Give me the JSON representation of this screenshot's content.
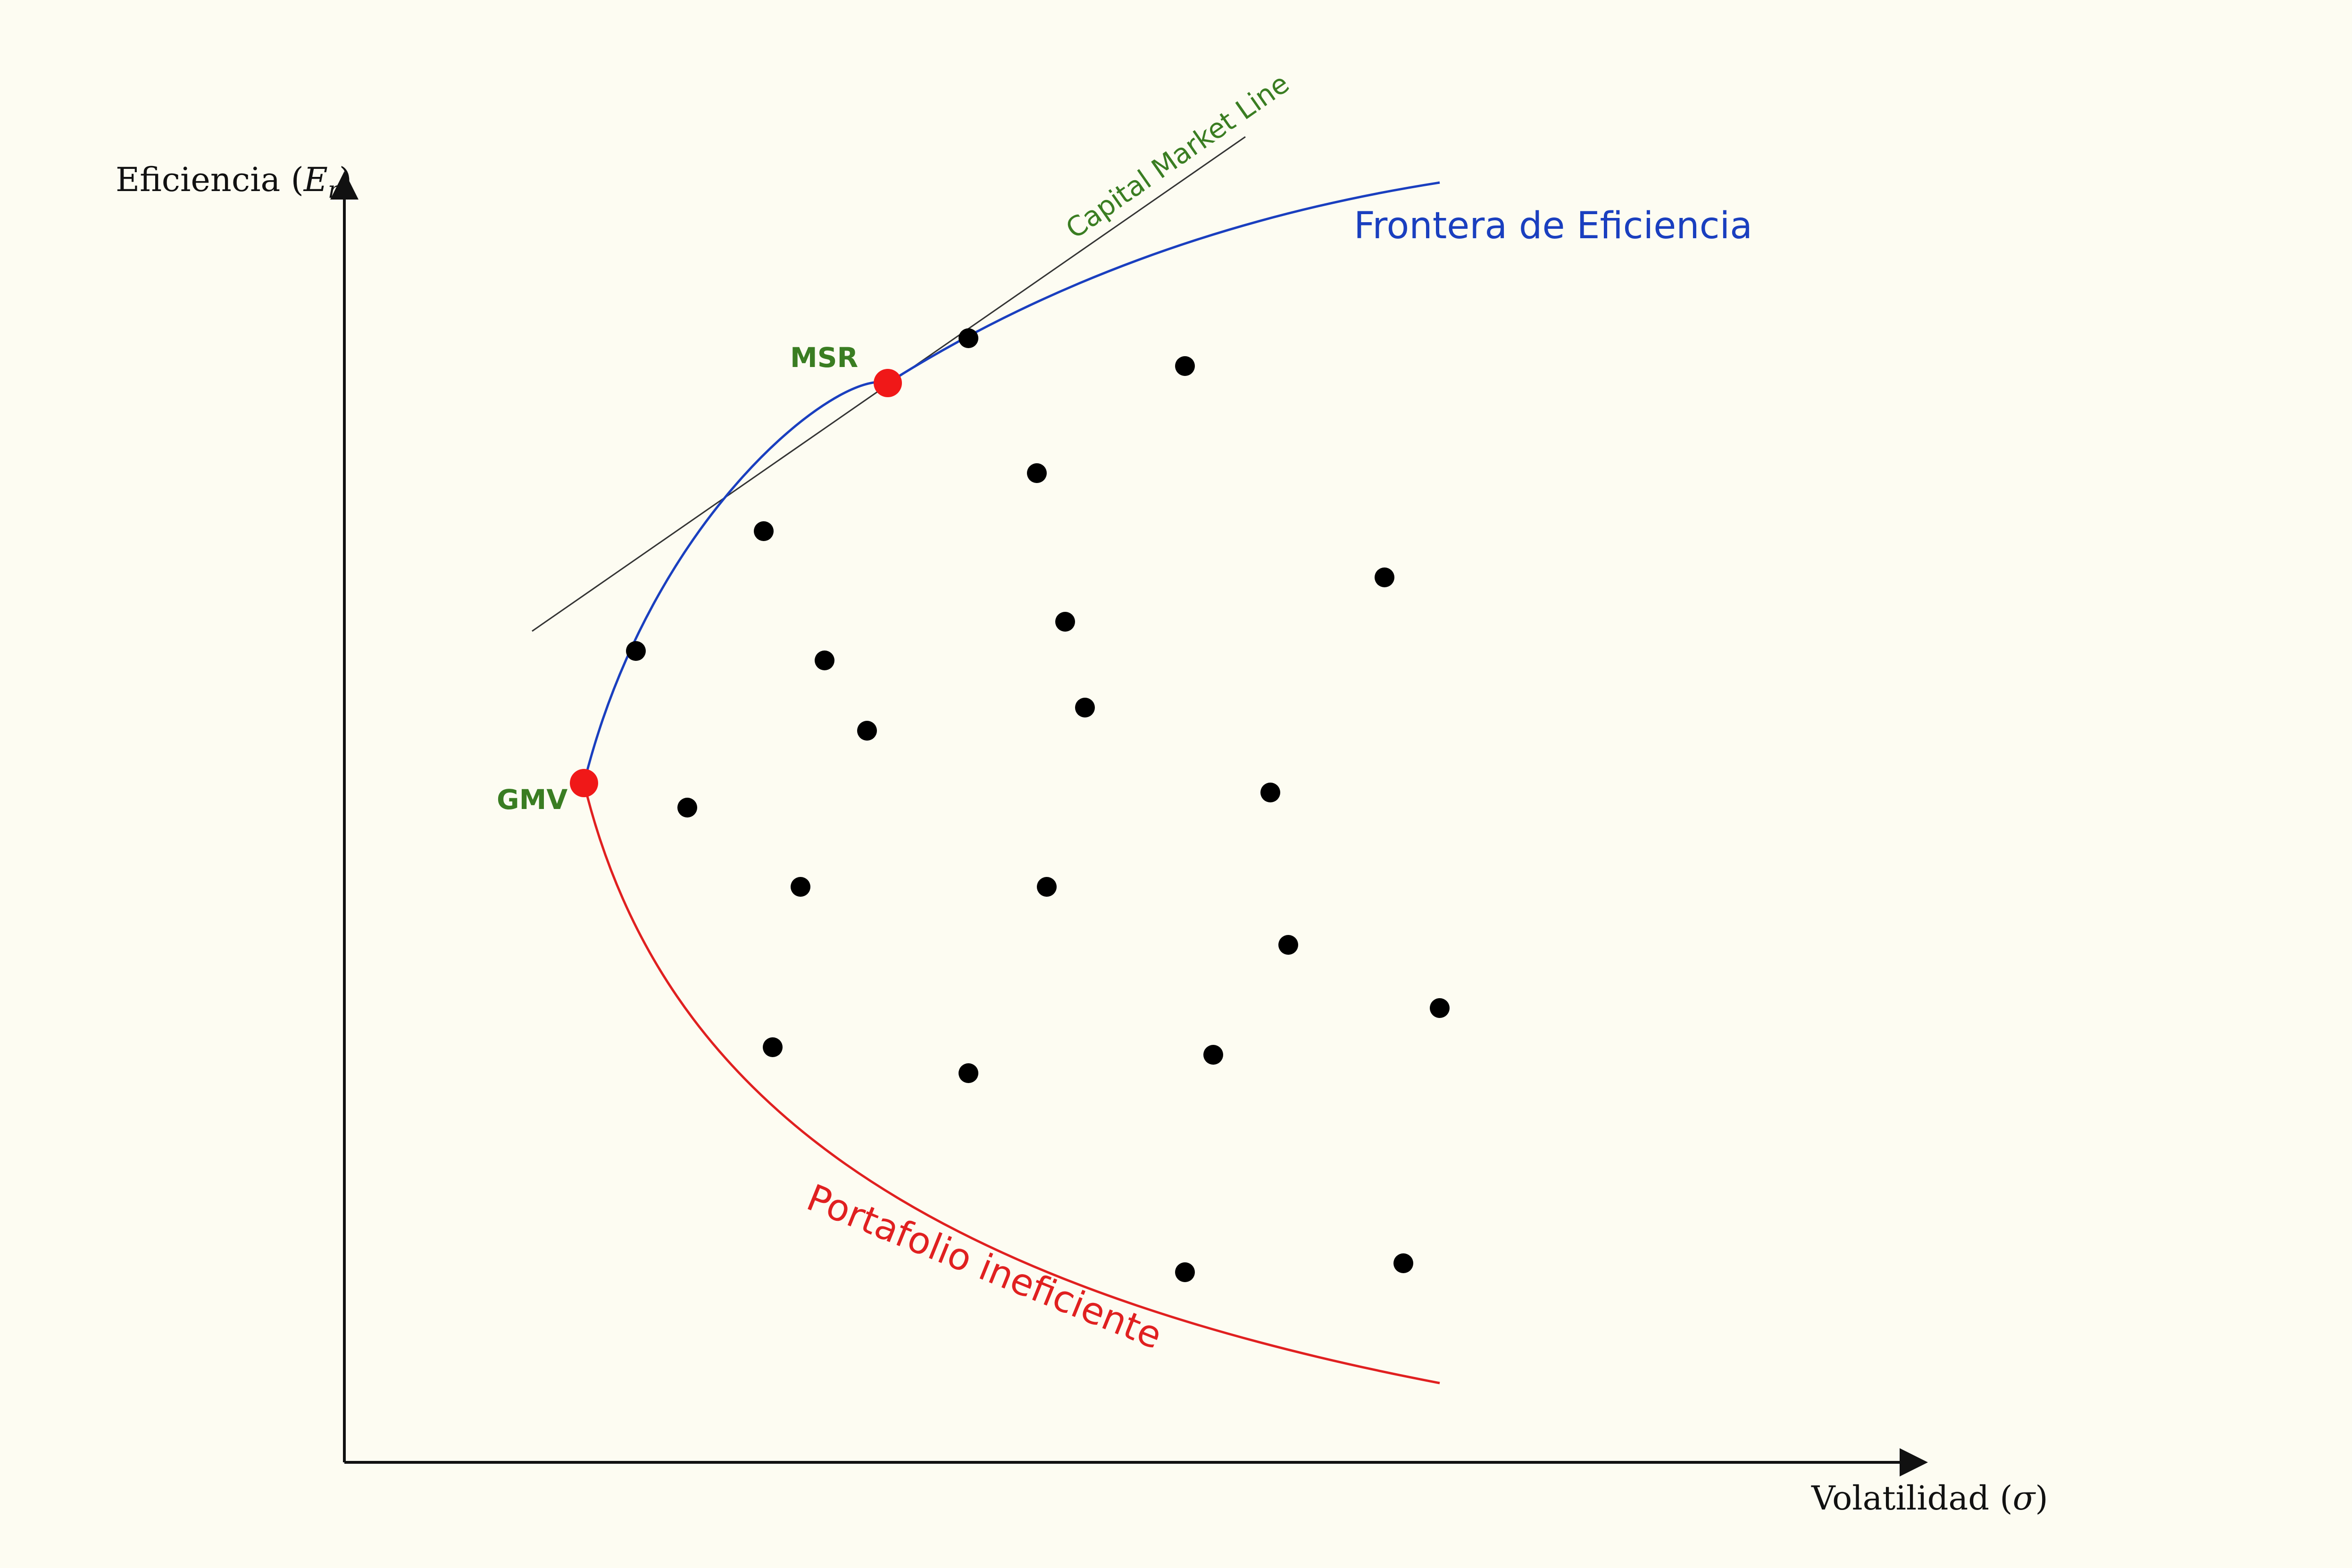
{
  "axes": {
    "y_label_text": "Eficiencia (",
    "y_label_symbol": "E",
    "y_label_subscript": "r",
    "y_label_close": ")",
    "x_label_text": "Volatilidad (",
    "x_label_symbol": "σ",
    "x_label_close": ")"
  },
  "labels": {
    "frontier": "Frontera de Eficiencia",
    "inefficient": "Portafolio ineficiente",
    "cml": "Capital Market Line",
    "msr": "MSR",
    "gmv": "GMV"
  },
  "colors": {
    "background": "#fdfcf2",
    "axis": "#111111",
    "frontier": "#1a3fbf",
    "inefficient": "#e02020",
    "cml_line": "#333333",
    "label_green": "#3a7d22",
    "special_point": "#f01818",
    "portfolio_point": "#000000"
  }
}
